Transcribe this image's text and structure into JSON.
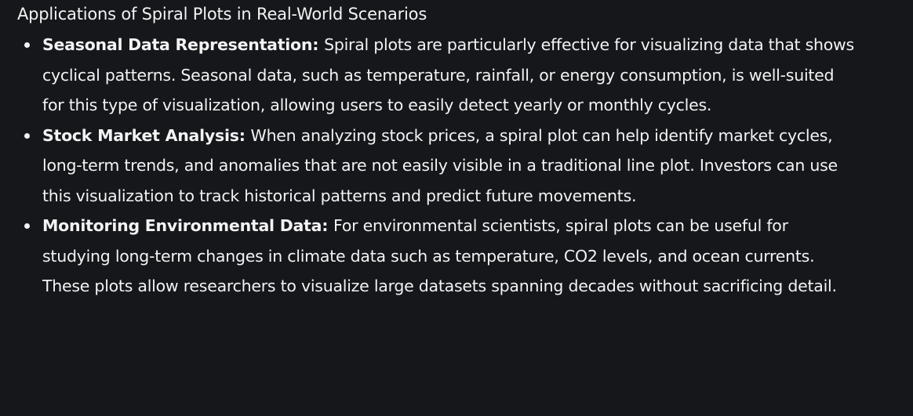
{
  "heading": "Applications of Spiral Plots in Real-World Scenarios",
  "items": [
    {
      "title": "Seasonal Data Representation:",
      "text": "Spiral plots are particularly effective for visualizing data that shows cyclical patterns. Seasonal data, such as temperature, rainfall, or energy consumption, is well-suited for this type of visualization, allowing users to easily detect yearly or monthly cycles."
    },
    {
      "title": "Stock Market Analysis:",
      "text": "When analyzing stock prices, a spiral plot can help identify market cycles, long-term trends, and anomalies that are not easily visible in a traditional line plot. Investors can use this visualization to track historical patterns and predict future movements."
    },
    {
      "title": "Monitoring Environmental Data:",
      "text": "For environmental scientists, spiral plots can be useful for studying long-term changes in climate data such as temperature, CO2 levels, and ocean currents. These plots allow researchers to visualize large datasets spanning decades without sacrificing detail."
    }
  ]
}
